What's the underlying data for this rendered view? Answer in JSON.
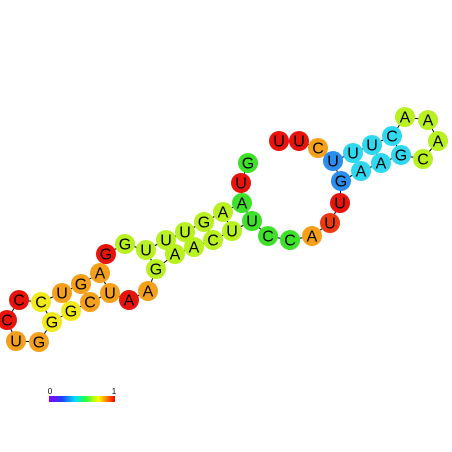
{
  "nodes": [
    {
      "label": "U",
      "color": "#e8140c"
    },
    {
      "label": "U",
      "color": "#e8140c"
    },
    {
      "label": "C",
      "color": "#f5a01a"
    },
    {
      "label": "U",
      "color": "#2a8ef0"
    },
    {
      "label": "U",
      "color": "#30d8ef"
    },
    {
      "label": "U",
      "color": "#30d8ef"
    },
    {
      "label": "C",
      "color": "#30d8ef"
    },
    {
      "label": "A",
      "color": "#b8f020"
    },
    {
      "label": "A",
      "color": "#b8f020"
    },
    {
      "label": "A",
      "color": "#b8f020"
    },
    {
      "label": "C",
      "color": "#b8f020"
    },
    {
      "label": "G",
      "color": "#30d8ef"
    },
    {
      "label": "A",
      "color": "#30d8ef"
    },
    {
      "label": "A",
      "color": "#30d8ef"
    },
    {
      "label": "G",
      "color": "#2a8ef0"
    },
    {
      "label": "U",
      "color": "#e8140c"
    },
    {
      "label": "U",
      "color": "#ec3a10"
    },
    {
      "label": "A",
      "color": "#f5a01a"
    },
    {
      "label": "C",
      "color": "#3ee02a"
    },
    {
      "label": "C",
      "color": "#3ee02a"
    },
    {
      "label": "U",
      "color": "#3ee02a"
    },
    {
      "label": "U",
      "color": "#b8f020"
    },
    {
      "label": "C",
      "color": "#b8f020"
    },
    {
      "label": "A",
      "color": "#b8f020"
    },
    {
      "label": "A",
      "color": "#b8f020"
    },
    {
      "label": "G",
      "color": "#b8f020"
    },
    {
      "label": "A",
      "color": "#f5a01a"
    },
    {
      "label": "A",
      "color": "#e8140c"
    },
    {
      "label": "U",
      "color": "#f5a01a"
    },
    {
      "label": "C",
      "color": "#f5a01a"
    },
    {
      "label": "G",
      "color": "#f2e918"
    },
    {
      "label": "G",
      "color": "#f2e918"
    },
    {
      "label": "G",
      "color": "#f5a01a"
    },
    {
      "label": "U",
      "color": "#f5a01a"
    },
    {
      "label": "C",
      "color": "#e8140c"
    },
    {
      "label": "C",
      "color": "#e8140c"
    },
    {
      "label": "C",
      "color": "#f2e918"
    },
    {
      "label": "U",
      "color": "#f5a01a"
    },
    {
      "label": "G",
      "color": "#f5a01a"
    },
    {
      "label": "A",
      "color": "#f5a01a"
    },
    {
      "label": "G",
      "color": "#e8140c"
    },
    {
      "label": "G",
      "color": "#b8f020"
    },
    {
      "label": "U",
      "color": "#b8f020"
    },
    {
      "label": "U",
      "color": "#b8f020"
    },
    {
      "label": "U",
      "color": "#b8f020"
    },
    {
      "label": "G",
      "color": "#b8f020"
    },
    {
      "label": "A",
      "color": "#b8f020"
    },
    {
      "label": "A",
      "color": "#3ee02a"
    },
    {
      "label": "U",
      "color": "#e8140c"
    },
    {
      "label": "G",
      "color": "#3ee02a"
    }
  ],
  "scale": {
    "min_label": "0",
    "max_label": "1"
  }
}
